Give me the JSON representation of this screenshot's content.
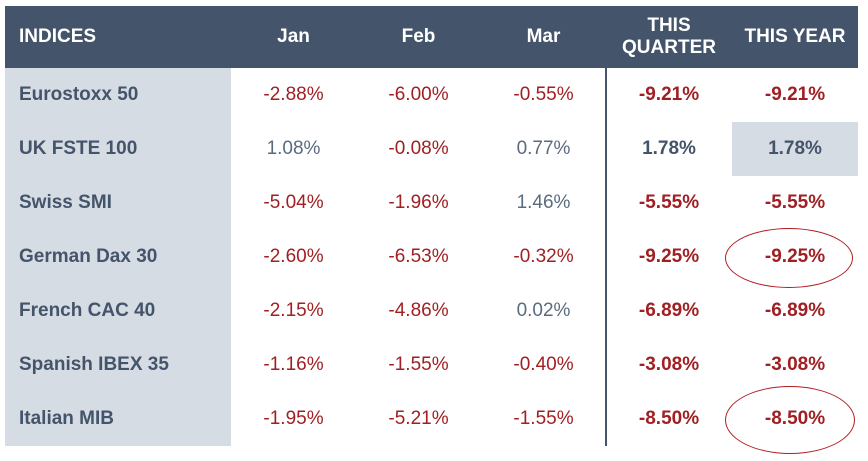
{
  "headers": [
    "INDICES",
    "Jan",
    "Feb",
    "Mar",
    "THIS\nQUARTER",
    "THIS YEAR"
  ],
  "rows": [
    {
      "name": "Eurostoxx 50",
      "jan": "-2.88%",
      "feb": "-6.00%",
      "mar": "-0.55%",
      "quarter": "-9.21%",
      "year": "-9.21%"
    },
    {
      "name": "UK FSTE 100",
      "jan": "1.08%",
      "feb": "-0.08%",
      "mar": "0.77%",
      "quarter": "1.78%",
      "year": "1.78%"
    },
    {
      "name": "Swiss SMI",
      "jan": "-5.04%",
      "feb": "-1.96%",
      "mar": "1.46%",
      "quarter": "-5.55%",
      "year": "-5.55%"
    },
    {
      "name": "German Dax 30",
      "jan": "-2.60%",
      "feb": "-6.53%",
      "mar": "-0.32%",
      "quarter": "-9.25%",
      "year": "-9.25%"
    },
    {
      "name": "French CAC 40",
      "jan": "-2.15%",
      "feb": "-4.86%",
      "mar": "0.02%",
      "quarter": "-6.89%",
      "year": "-6.89%"
    },
    {
      "name": "Spanish IBEX 35",
      "jan": "-1.16%",
      "feb": "-1.55%",
      "mar": "-0.40%",
      "quarter": "-3.08%",
      "year": "-3.08%"
    },
    {
      "name": "Italian MIB",
      "jan": "-1.95%",
      "feb": "-5.21%",
      "mar": "-1.55%",
      "quarter": "-8.50%",
      "year": "-8.50%"
    }
  ],
  "colors": {
    "header_bg": "#44546a",
    "negative": "#a11f22",
    "positive": "#5b6b7f",
    "highlight": "#d6dce4",
    "circle": "#b01e22"
  }
}
